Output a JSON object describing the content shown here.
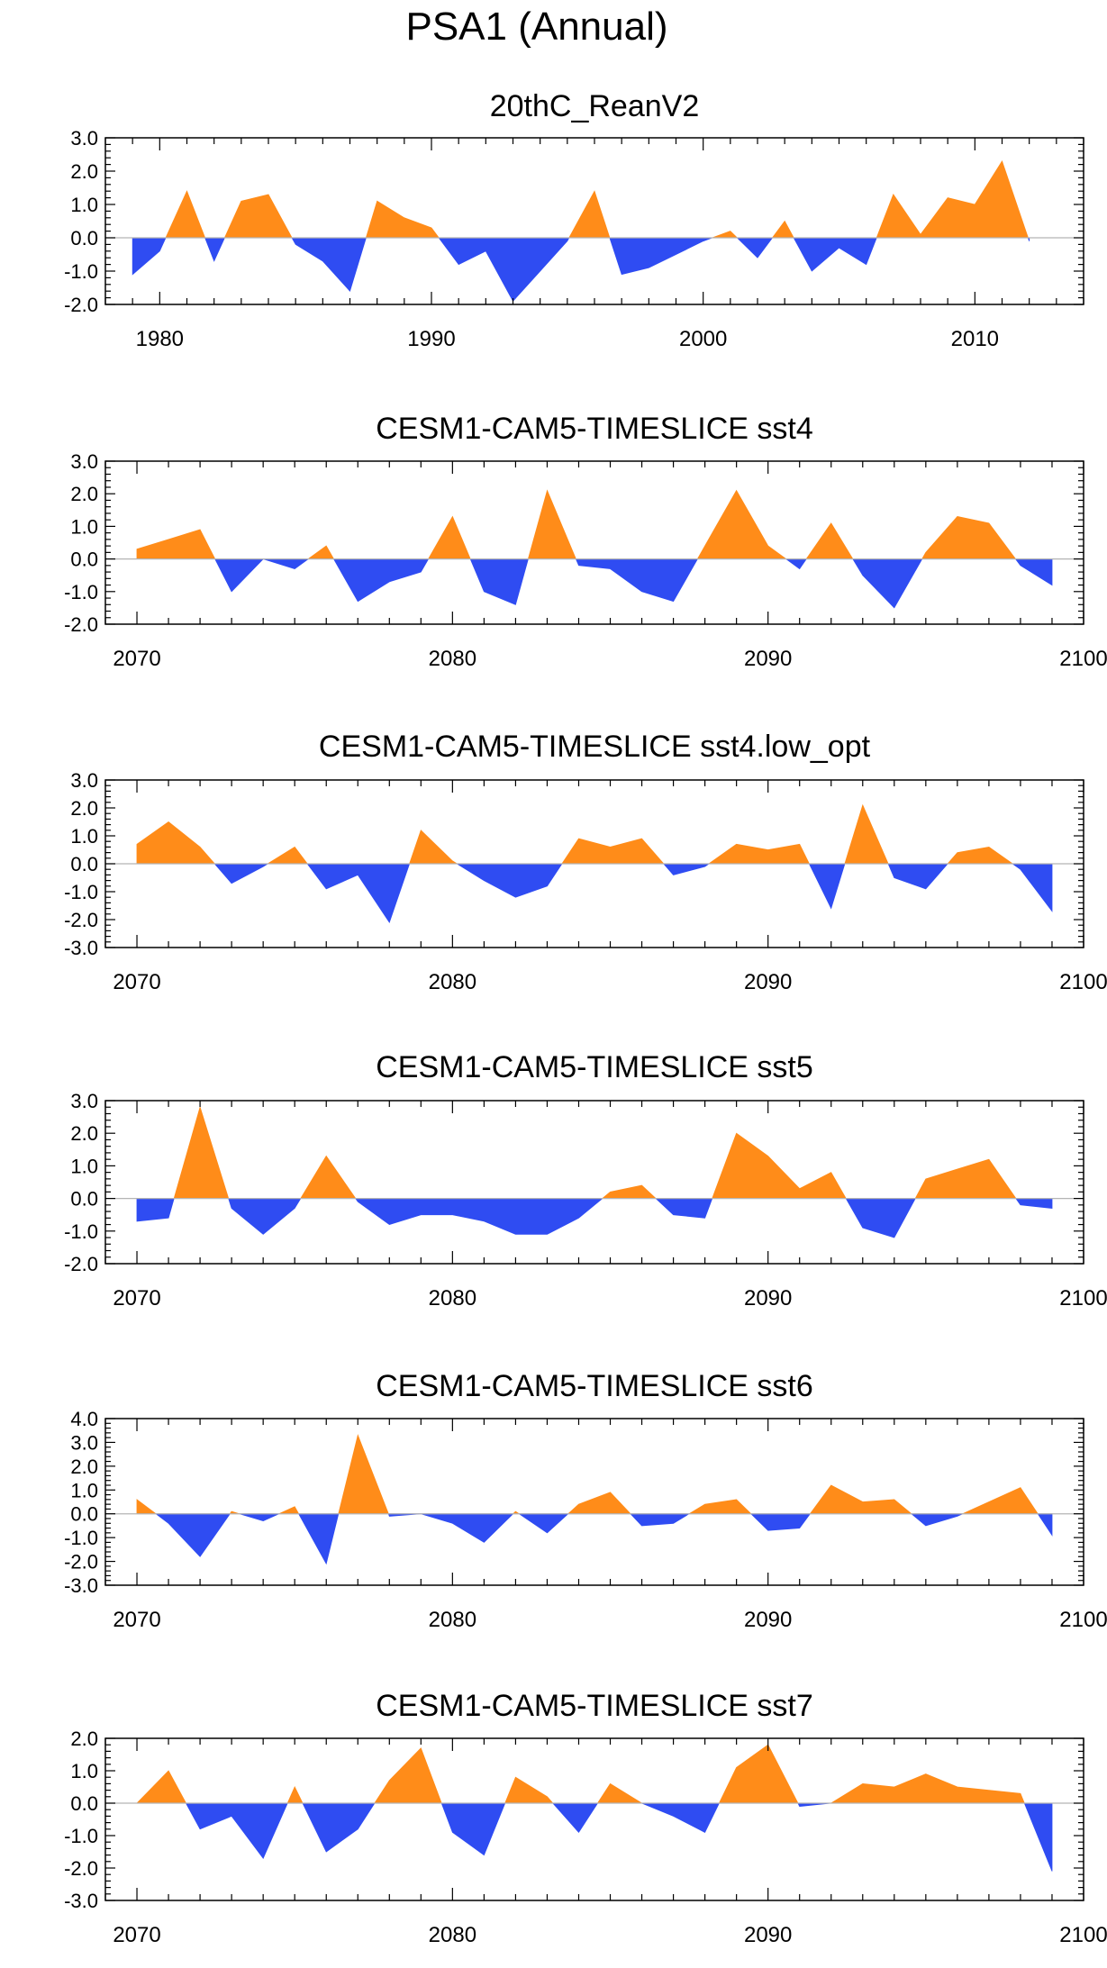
{
  "title": "PSA1 (Annual)",
  "colors": {
    "positive": "#ff8c19",
    "negative": "#2f4cf2",
    "frame": "#000000",
    "zero_line": "#b4b4b4"
  },
  "chart_data": [
    {
      "type": "area",
      "title": "20thC_ReanV2",
      "x_start": 1979,
      "xlim": [
        1978,
        2014
      ],
      "xticks": [
        1980,
        1990,
        2000,
        2010
      ],
      "ylim": [
        -2.0,
        3.0
      ],
      "yticks": [
        "3.0",
        "2.0",
        "1.0",
        "0.0",
        "-1.0",
        "-2.0"
      ],
      "values": [
        -1.1,
        -0.4,
        1.4,
        -0.7,
        1.1,
        1.3,
        -0.2,
        -0.7,
        -1.6,
        1.1,
        0.6,
        0.3,
        -0.8,
        -0.4,
        -1.9,
        -1.0,
        -0.1,
        1.4,
        -1.1,
        -0.9,
        -0.5,
        -0.1,
        0.2,
        -0.6,
        0.5,
        -1.0,
        -0.3,
        -0.8,
        1.3,
        0.1,
        1.2,
        1.0,
        2.3,
        -0.1
      ]
    },
    {
      "type": "area",
      "title": "CESM1-CAM5-TIMESLICE sst4",
      "x_start": 2070,
      "xlim": [
        2069,
        2100
      ],
      "xticks": [
        2070,
        2080,
        2090,
        2100
      ],
      "ylim": [
        -2.0,
        3.0
      ],
      "yticks": [
        "3.0",
        "2.0",
        "1.0",
        "0.0",
        "-1.0",
        "-2.0"
      ],
      "values": [
        0.3,
        0.6,
        0.9,
        -1.0,
        0.0,
        -0.3,
        0.4,
        -1.3,
        -0.7,
        -0.4,
        1.3,
        -1.0,
        -1.4,
        2.1,
        -0.2,
        -0.3,
        -1.0,
        -1.3,
        0.4,
        2.1,
        0.4,
        -0.3,
        1.1,
        -0.5,
        -1.5,
        0.2,
        1.3,
        1.1,
        -0.2,
        -0.8
      ]
    },
    {
      "type": "area",
      "title": "CESM1-CAM5-TIMESLICE sst4.low_opt",
      "x_start": 2070,
      "xlim": [
        2069,
        2100
      ],
      "xticks": [
        2070,
        2080,
        2090,
        2100
      ],
      "ylim": [
        -3.0,
        3.0
      ],
      "yticks": [
        "3.0",
        "2.0",
        "1.0",
        "0.0",
        "-1.0",
        "-2.0",
        "-3.0"
      ],
      "values": [
        0.7,
        1.5,
        0.6,
        -0.7,
        -0.1,
        0.6,
        -0.9,
        -0.4,
        -2.1,
        1.2,
        0.1,
        -0.6,
        -1.2,
        -0.8,
        0.9,
        0.6,
        0.9,
        -0.4,
        -0.1,
        0.7,
        0.5,
        0.7,
        -1.6,
        2.1,
        -0.5,
        -0.9,
        0.4,
        0.6,
        -0.2,
        -1.7
      ]
    },
    {
      "type": "area",
      "title": "CESM1-CAM5-TIMESLICE sst5",
      "x_start": 2070,
      "xlim": [
        2069,
        2100
      ],
      "xticks": [
        2070,
        2080,
        2090,
        2100
      ],
      "ylim": [
        -2.0,
        3.0
      ],
      "yticks": [
        "3.0",
        "2.0",
        "1.0",
        "0.0",
        "-1.0",
        "-2.0"
      ],
      "values": [
        -0.7,
        -0.6,
        2.8,
        -0.3,
        -1.1,
        -0.3,
        1.3,
        -0.1,
        -0.8,
        -0.5,
        -0.5,
        -0.7,
        -1.1,
        -1.1,
        -0.6,
        0.2,
        0.4,
        -0.5,
        -0.6,
        2.0,
        1.3,
        0.3,
        0.8,
        -0.9,
        -1.2,
        0.6,
        0.9,
        1.2,
        -0.2,
        -0.3
      ]
    },
    {
      "type": "area",
      "title": "CESM1-CAM5-TIMESLICE sst6",
      "x_start": 2070,
      "xlim": [
        2069,
        2100
      ],
      "xticks": [
        2070,
        2080,
        2090,
        2100
      ],
      "ylim": [
        -3.0,
        4.0
      ],
      "yticks": [
        "4.0",
        "3.0",
        "2.0",
        "1.0",
        "0.0",
        "-1.0",
        "-2.0",
        "-3.0"
      ],
      "values": [
        0.6,
        -0.4,
        -1.8,
        0.1,
        -0.3,
        0.3,
        -2.1,
        3.3,
        -0.1,
        0.0,
        -0.4,
        -1.2,
        0.1,
        -0.8,
        0.4,
        0.9,
        -0.5,
        -0.4,
        0.4,
        0.6,
        -0.7,
        -0.6,
        1.2,
        0.5,
        0.6,
        -0.5,
        -0.1,
        0.5,
        1.1,
        -0.9
      ]
    },
    {
      "type": "area",
      "title": "CESM1-CAM5-TIMESLICE sst7",
      "x_start": 2070,
      "xlim": [
        2069,
        2100
      ],
      "xticks": [
        2070,
        2080,
        2090,
        2100
      ],
      "ylim": [
        -3.0,
        2.0
      ],
      "yticks": [
        "2.0",
        "1.0",
        "0.0",
        "-1.0",
        "-2.0",
        "-3.0"
      ],
      "values": [
        0.0,
        1.0,
        -0.8,
        -0.4,
        -1.7,
        0.5,
        -1.5,
        -0.8,
        0.7,
        1.7,
        -0.9,
        -1.6,
        0.8,
        0.2,
        -0.9,
        0.6,
        0.0,
        -0.4,
        -0.9,
        1.1,
        1.8,
        -0.1,
        0.0,
        0.6,
        0.5,
        0.9,
        0.5,
        0.4,
        0.3,
        -2.1
      ]
    }
  ]
}
